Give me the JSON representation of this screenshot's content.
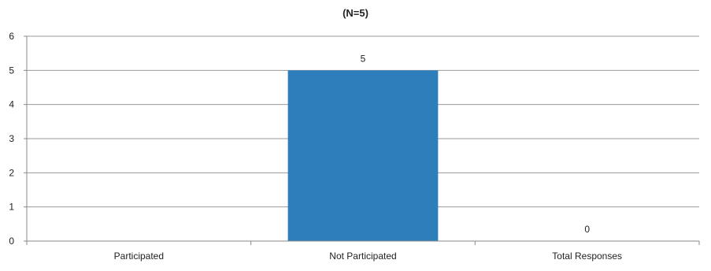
{
  "chart_data": {
    "type": "bar",
    "title": "(N=5)",
    "categories": [
      "Participated",
      "Not Participated",
      "Total Responses"
    ],
    "values": [
      null,
      5,
      0
    ],
    "data_labels": [
      "",
      "5",
      "0"
    ],
    "ylim": [
      0,
      6
    ],
    "yticks": [
      0,
      1,
      2,
      3,
      4,
      5,
      6
    ],
    "grid": true,
    "legend": "none",
    "colors": {
      "bar": "#2e7ebc",
      "grid": "#9a9a9a",
      "axis": "#888888",
      "text": "#222222"
    }
  }
}
